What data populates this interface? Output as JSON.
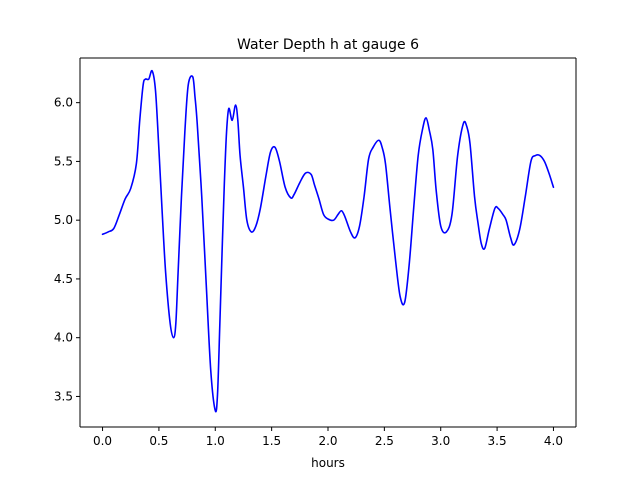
{
  "chart_data": {
    "type": "line",
    "title": "Water Depth h at gauge 6",
    "xlabel": "hours",
    "ylabel": "",
    "xlim": [
      -0.2,
      4.2
    ],
    "ylim": [
      3.24,
      6.38
    ],
    "xticks": [
      0.0,
      0.5,
      1.0,
      1.5,
      2.0,
      2.5,
      3.0,
      3.5,
      4.0
    ],
    "xtick_labels": [
      "0.0",
      "0.5",
      "1.0",
      "1.5",
      "2.0",
      "2.5",
      "3.0",
      "3.5",
      "4.0"
    ],
    "yticks": [
      3.5,
      4.0,
      4.5,
      5.0,
      5.5,
      6.0
    ],
    "ytick_labels": [
      "3.5",
      "4.0",
      "4.5",
      "5.0",
      "5.5",
      "6.0"
    ],
    "grid": false,
    "line_color": "#0000ff",
    "series": [
      {
        "x": [
          0.0,
          0.05,
          0.1,
          0.15,
          0.2,
          0.25,
          0.3,
          0.33,
          0.36,
          0.38,
          0.41,
          0.44,
          0.47,
          0.5,
          0.53,
          0.56,
          0.6,
          0.63,
          0.65,
          0.67,
          0.7,
          0.73,
          0.76,
          0.8,
          0.82,
          0.84,
          0.88,
          0.92,
          0.96,
          1.0,
          1.02,
          1.04,
          1.06,
          1.08,
          1.1,
          1.12,
          1.15,
          1.18,
          1.2,
          1.22,
          1.25,
          1.28,
          1.32,
          1.36,
          1.4,
          1.45,
          1.49,
          1.53,
          1.57,
          1.62,
          1.67,
          1.7,
          1.75,
          1.8,
          1.85,
          1.88,
          1.92,
          1.96,
          2.0,
          2.05,
          2.09,
          2.12,
          2.15,
          2.2,
          2.24,
          2.28,
          2.32,
          2.36,
          2.4,
          2.45,
          2.48,
          2.51,
          2.55,
          2.6,
          2.64,
          2.68,
          2.72,
          2.76,
          2.8,
          2.84,
          2.87,
          2.9,
          2.93,
          2.96,
          3.0,
          3.05,
          3.1,
          3.15,
          3.2,
          3.23,
          3.26,
          3.3,
          3.33,
          3.36,
          3.39,
          3.43,
          3.48,
          3.51,
          3.55,
          3.58,
          3.62,
          3.65,
          3.7,
          3.75,
          3.8,
          3.84,
          3.88,
          3.92,
          3.96,
          4.0
        ],
        "y": [
          4.88,
          4.9,
          4.93,
          5.05,
          5.18,
          5.27,
          5.48,
          5.85,
          6.15,
          6.2,
          6.2,
          6.27,
          6.1,
          5.6,
          5.05,
          4.55,
          4.12,
          4.0,
          4.12,
          4.55,
          5.2,
          5.75,
          6.15,
          6.22,
          6.05,
          5.82,
          5.2,
          4.45,
          3.72,
          3.38,
          3.52,
          4.1,
          4.72,
          5.3,
          5.75,
          5.95,
          5.85,
          5.98,
          5.85,
          5.55,
          5.28,
          5.0,
          4.9,
          4.95,
          5.1,
          5.38,
          5.58,
          5.62,
          5.5,
          5.28,
          5.19,
          5.22,
          5.32,
          5.4,
          5.39,
          5.3,
          5.18,
          5.05,
          5.01,
          5.0,
          5.05,
          5.08,
          5.03,
          4.9,
          4.85,
          4.95,
          5.2,
          5.52,
          5.62,
          5.68,
          5.62,
          5.48,
          5.1,
          4.65,
          4.35,
          4.3,
          4.62,
          5.1,
          5.55,
          5.78,
          5.87,
          5.76,
          5.6,
          5.25,
          4.95,
          4.9,
          5.05,
          5.55,
          5.82,
          5.8,
          5.65,
          5.2,
          4.98,
          4.8,
          4.76,
          4.92,
          5.1,
          5.1,
          5.05,
          5.0,
          4.85,
          4.79,
          4.92,
          5.2,
          5.5,
          5.55,
          5.55,
          5.5,
          5.4,
          5.28
        ]
      }
    ]
  }
}
